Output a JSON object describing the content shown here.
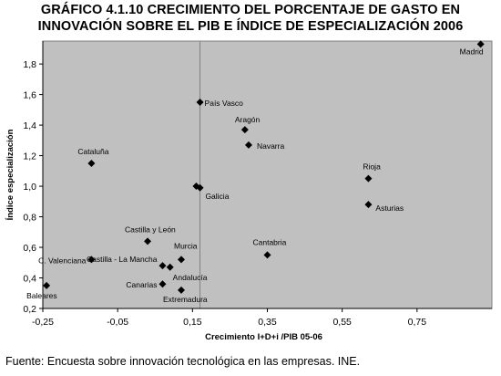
{
  "title_line1": "GRÁFICO 4.1.10 CRECIMIENTO DEL PORCENTAJE DE GASTO EN",
  "title_line2": "INNOVACIÓN SOBRE EL PIB E ÍNDICE DE ESPECIALIZACIÓN 2006",
  "source": "Fuente: Encuesta sobre innovación tecnológica en las empresas. INE.",
  "colors": {
    "plot_bg": "#c0c0c0",
    "marker": "#000000",
    "frame": "#808080"
  },
  "chart_data": {
    "type": "scatter",
    "xlabel": "Crecimiento I+D+i /PIB 05-06",
    "ylabel": "Índice especialización",
    "xlim": [
      -0.25,
      0.95
    ],
    "ylim": [
      0.2,
      1.95
    ],
    "xticks": [
      -0.25,
      -0.05,
      0.15,
      0.35,
      0.55,
      0.75
    ],
    "xtick_labels": [
      "-0,25",
      "-0,05",
      "0,15",
      "0,35",
      "0,55",
      "0,75"
    ],
    "yticks": [
      0.2,
      0.4,
      0.6,
      0.8,
      1.0,
      1.2,
      1.4,
      1.6,
      1.8
    ],
    "ytick_labels": [
      "0,2",
      "0,4",
      "0,6",
      "0,8",
      "1,0",
      "1,2",
      "1,4",
      "1,6",
      "1,8"
    ],
    "reference_lines": {
      "x": 0.17
    },
    "grid": false,
    "points": [
      {
        "label": "Madrid",
        "x": 0.92,
        "y": 1.93
      },
      {
        "label": "País Vasco",
        "x": 0.17,
        "y": 1.55
      },
      {
        "label": "Aragón",
        "x": 0.29,
        "y": 1.37
      },
      {
        "label": "Navarra",
        "x": 0.3,
        "y": 1.27
      },
      {
        "label": "Cataluña",
        "x": -0.12,
        "y": 1.15
      },
      {
        "label": "Rioja",
        "x": 0.62,
        "y": 1.05
      },
      {
        "label": "Galicia",
        "x": 0.16,
        "y": 1.0
      },
      {
        "label": "",
        "x": 0.17,
        "y": 0.99
      },
      {
        "label": "Asturias",
        "x": 0.62,
        "y": 0.88
      },
      {
        "label": "Castilla y León",
        "x": 0.03,
        "y": 0.64
      },
      {
        "label": "Cantabria",
        "x": 0.35,
        "y": 0.55
      },
      {
        "label": "Murcia",
        "x": 0.12,
        "y": 0.52
      },
      {
        "label": "C. Valenciana",
        "x": -0.12,
        "y": 0.52
      },
      {
        "label": "Castilla - La Mancha",
        "x": 0.07,
        "y": 0.48
      },
      {
        "label": "Andalucía",
        "x": 0.09,
        "y": 0.47
      },
      {
        "label": "Canarias",
        "x": 0.07,
        "y": 0.36
      },
      {
        "label": "Baleares",
        "x": -0.24,
        "y": 0.35
      },
      {
        "label": "Extremadura",
        "x": 0.12,
        "y": 0.32
      }
    ]
  }
}
